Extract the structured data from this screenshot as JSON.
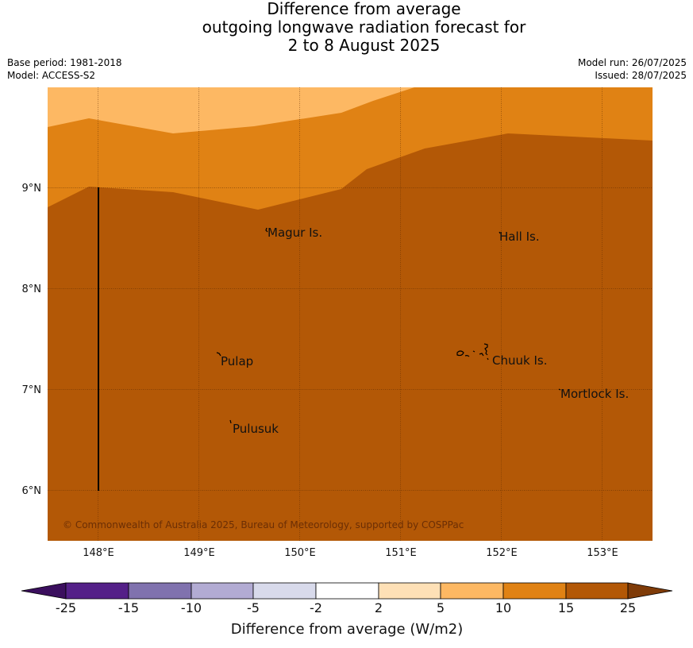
{
  "title": {
    "line1": "Difference from average",
    "line2": "outgoing longwave radiation forecast for",
    "line3": "2 to 8 August 2025"
  },
  "meta": {
    "base_period": "Base period: 1981-2018",
    "model": "Model: ACCESS-S2",
    "model_run": "Model run: 26/07/2025",
    "issued": "Issued: 28/07/2025"
  },
  "map": {
    "lat_ticks": [
      "9°N",
      "8°N",
      "7°N",
      "6°N"
    ],
    "lon_ticks": [
      "148°E",
      "149°E",
      "150°E",
      "151°E",
      "152°E",
      "153°E"
    ],
    "places": [
      "Magur Is.",
      "Hall Is.",
      "Pulap",
      "Chuuk Is.",
      "Mortlock Is.",
      "Pulusuk"
    ],
    "copyright": "© Commonwealth of Australia 2025, Bureau of Meteorology, supported by COSPPac"
  },
  "colorbar": {
    "title": "Difference from average (W/m2)",
    "tick_labels": [
      "-25",
      "-15",
      "-10",
      "-5",
      "-2",
      "2",
      "5",
      "10",
      "15",
      "25"
    ],
    "colors": {
      "below": "#3b0f5e",
      "c1": "#542088",
      "c2": "#8072ae",
      "c3": "#b2abd3",
      "c4": "#d8daeb",
      "c5": "#ffffff",
      "c6": "#fee0b6",
      "c7": "#fdb863",
      "c8": "#e08214",
      "c9": "#b35806",
      "above": "#7f3b08"
    }
  }
}
